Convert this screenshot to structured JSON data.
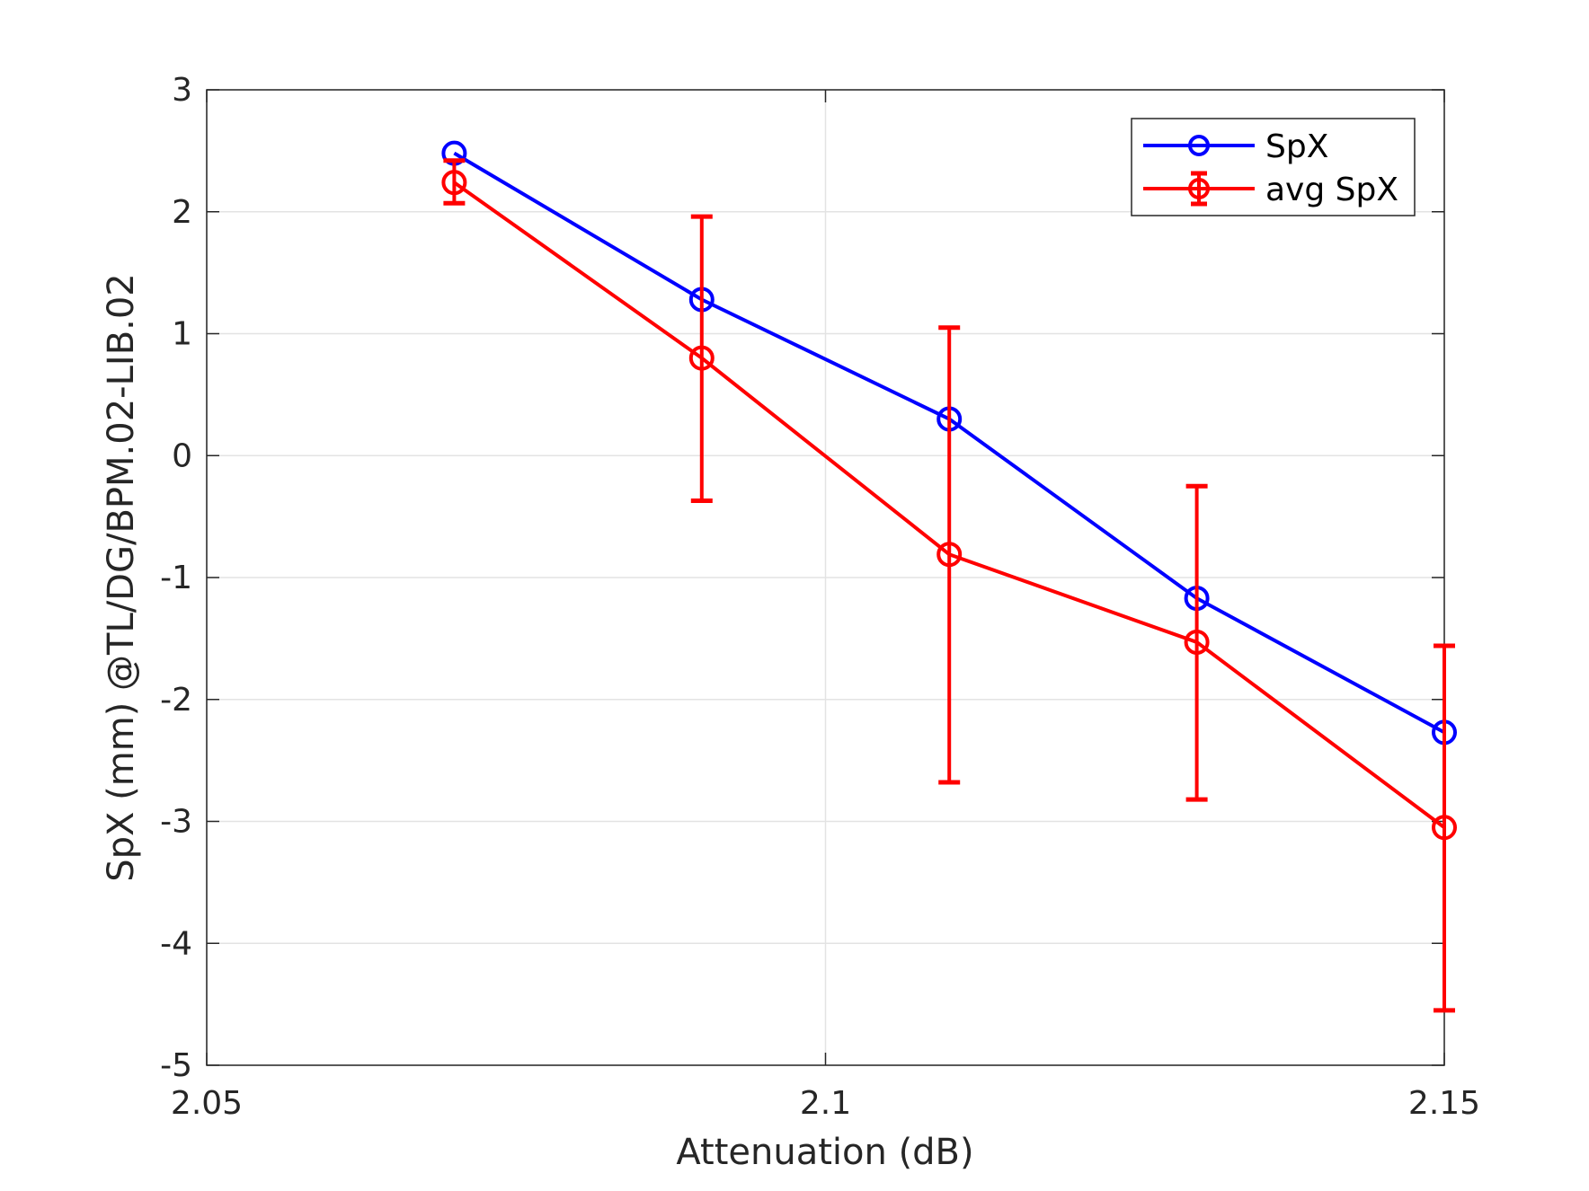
{
  "chart_data": {
    "type": "line",
    "title": "",
    "xlabel": "Attenuation (dB)",
    "ylabel": "SpX (mm) @TL/DG/BPM.02-LIB.02",
    "xlim": [
      2.05,
      2.15
    ],
    "ylim": [
      -5,
      3
    ],
    "xticks": [
      "2.05",
      "2.1",
      "2.15"
    ],
    "yticks": [
      "-5",
      "-4",
      "-3",
      "-2",
      "-1",
      "0",
      "1",
      "2",
      "3"
    ],
    "grid": true,
    "legend_position": "top-right",
    "x": [
      2.07,
      2.09,
      2.11,
      2.13,
      2.15
    ],
    "series": [
      {
        "name": "SpX",
        "color": "#0000ff",
        "marker": "circle",
        "values": [
          2.48,
          1.28,
          0.3,
          -1.17,
          -2.27
        ]
      },
      {
        "name": "avg SpX",
        "color": "#ff0000",
        "marker": "circle",
        "values": [
          2.24,
          0.8,
          -0.81,
          -1.53,
          -3.05
        ],
        "error_lower": [
          2.07,
          -0.37,
          -2.68,
          -2.82,
          -4.55
        ],
        "error_upper": [
          2.42,
          1.96,
          1.05,
          -0.25,
          -1.56
        ]
      }
    ]
  }
}
